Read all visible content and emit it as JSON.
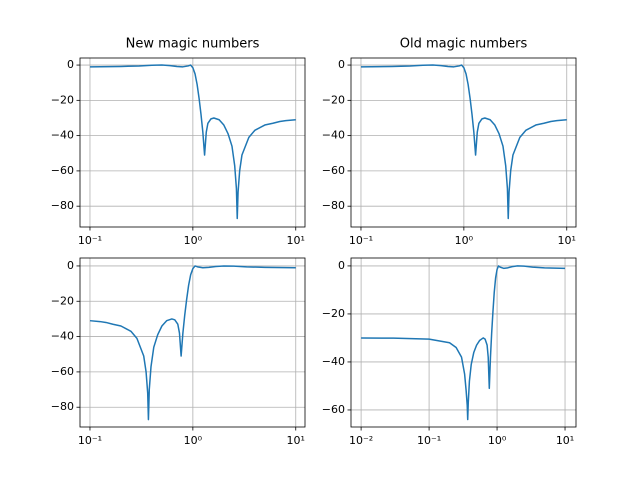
{
  "chart_data": [
    {
      "type": "line",
      "title": "New magic numbers",
      "xscale": "log",
      "grid": true,
      "color": "#1f77b4",
      "x": [
        0.1,
        0.2,
        0.3,
        0.4,
        0.5,
        0.6,
        0.7,
        0.8,
        0.9,
        0.95,
        1.0,
        1.05,
        1.1,
        1.15,
        1.2,
        1.25,
        1.3,
        1.35,
        1.4,
        1.5,
        1.6,
        1.8,
        2.0,
        2.2,
        2.4,
        2.55,
        2.65,
        2.7,
        2.75,
        2.85,
        3.0,
        3.5,
        4.0,
        5.0,
        6.0,
        7.0,
        8.0,
        10
      ],
      "values": [
        -1,
        -0.8,
        -0.5,
        -0.1,
        0,
        -0.3,
        -0.8,
        -1,
        -0.5,
        0,
        -1.5,
        -5,
        -11,
        -19,
        -28,
        -38,
        -51,
        -38,
        -33,
        -30.5,
        -30,
        -31,
        -34,
        -39,
        -46,
        -57,
        -70,
        -87,
        -72,
        -60,
        -51,
        -41,
        -37,
        -34,
        -33,
        -32,
        -31.5,
        -31
      ],
      "xlim": [
        0.08,
        12.3
      ],
      "ylim": [
        -91.8,
        4
      ],
      "xticks": [
        {
          "value": 0.1,
          "label": "10⁻¹"
        },
        {
          "value": 1,
          "label": "10⁰"
        },
        {
          "value": 10,
          "label": "10¹"
        }
      ],
      "yticks": [
        {
          "value": -80,
          "label": "−80"
        },
        {
          "value": -60,
          "label": "−60"
        },
        {
          "value": -40,
          "label": "−40"
        },
        {
          "value": -20,
          "label": "−20"
        },
        0
      ]
    },
    {
      "type": "line",
      "title": "Old magic numbers",
      "xscale": "log",
      "grid": true,
      "color": "#1f77b4",
      "x": [
        0.1,
        0.2,
        0.3,
        0.4,
        0.5,
        0.6,
        0.7,
        0.8,
        0.9,
        0.95,
        1.0,
        1.05,
        1.1,
        1.15,
        1.2,
        1.25,
        1.3,
        1.35,
        1.4,
        1.5,
        1.6,
        1.8,
        2.0,
        2.2,
        2.4,
        2.55,
        2.65,
        2.7,
        2.75,
        2.85,
        3.0,
        3.5,
        4.0,
        5.0,
        6.0,
        7.0,
        8.0,
        10
      ],
      "values": [
        -1,
        -0.8,
        -0.5,
        -0.1,
        0,
        -0.3,
        -0.8,
        -1,
        -0.5,
        0,
        -1.5,
        -5,
        -11,
        -19,
        -28,
        -38,
        -51,
        -38,
        -33,
        -30.5,
        -30,
        -31,
        -34,
        -39,
        -46,
        -57,
        -70,
        -87,
        -72,
        -60,
        -51,
        -41,
        -37,
        -34,
        -33,
        -32,
        -31.5,
        -31
      ],
      "xlim": [
        0.08,
        12.3
      ],
      "ylim": [
        -91.8,
        4
      ],
      "xticks": [
        {
          "value": 0.1,
          "label": "10⁻¹"
        },
        {
          "value": 1,
          "label": "10⁰"
        },
        {
          "value": 10,
          "label": "10¹"
        }
      ],
      "yticks": [
        {
          "value": -80,
          "label": "−80"
        },
        {
          "value": -60,
          "label": "−60"
        },
        {
          "value": -40,
          "label": "−40"
        },
        {
          "value": -20,
          "label": "−20"
        },
        0
      ]
    },
    {
      "type": "line",
      "xscale": "log",
      "grid": true,
      "color": "#1f77b4",
      "x": [
        0.1,
        0.125,
        0.143,
        0.167,
        0.2,
        0.25,
        0.286,
        0.333,
        0.351,
        0.364,
        0.37,
        0.377,
        0.392,
        0.417,
        0.455,
        0.5,
        0.556,
        0.625,
        0.667,
        0.714,
        0.741,
        0.769,
        0.8,
        0.833,
        0.87,
        0.909,
        0.952,
        1.0,
        1.05,
        1.11,
        1.25,
        1.43,
        1.67,
        2.0,
        2.5,
        3.33,
        5,
        10
      ],
      "values": [
        -31,
        -31.5,
        -32,
        -33,
        -34,
        -37,
        -41,
        -51,
        -60,
        -72,
        -87,
        -70,
        -57,
        -46,
        -39,
        -34,
        -31,
        -30,
        -30.5,
        -33,
        -38,
        -51,
        -38,
        -28,
        -19,
        -11,
        -5,
        -1.5,
        0,
        -0.5,
        -1,
        -0.8,
        -0.3,
        0,
        -0.1,
        -0.5,
        -0.8,
        -1
      ],
      "xlim": [
        0.08,
        12.3
      ],
      "ylim": [
        -91.2,
        4.5
      ],
      "xticks": [
        {
          "value": 0.1,
          "label": "10⁻¹"
        },
        {
          "value": 1,
          "label": "10⁰"
        },
        {
          "value": 10,
          "label": "10¹"
        }
      ],
      "yticks": [
        {
          "value": -80,
          "label": "−80"
        },
        {
          "value": -60,
          "label": "−60"
        },
        {
          "value": -40,
          "label": "−40"
        },
        {
          "value": -20,
          "label": "−20"
        },
        0
      ]
    },
    {
      "type": "line",
      "xscale": "log",
      "grid": true,
      "color": "#1f77b4",
      "x": [
        0.01,
        0.03,
        0.1,
        0.2,
        0.25,
        0.3,
        0.333,
        0.351,
        0.364,
        0.37,
        0.377,
        0.392,
        0.417,
        0.455,
        0.5,
        0.556,
        0.625,
        0.667,
        0.714,
        0.741,
        0.769,
        0.8,
        0.833,
        0.87,
        0.909,
        0.952,
        1.0,
        1.05,
        1.11,
        1.25,
        1.43,
        1.67,
        2.0,
        2.5,
        3.33,
        5,
        10
      ],
      "values": [
        -30,
        -30.1,
        -30.5,
        -32,
        -34,
        -38,
        -45,
        -52,
        -58,
        -64,
        -57,
        -48,
        -41,
        -36,
        -33,
        -31,
        -30,
        -30.5,
        -33,
        -38,
        -51,
        -38,
        -28,
        -19,
        -11,
        -5,
        -1.5,
        0,
        -0.5,
        -1,
        -0.8,
        -0.3,
        0,
        -0.1,
        -0.5,
        -0.8,
        -1
      ],
      "xlim": [
        0.0071,
        14.5
      ],
      "ylim": [
        -67.1,
        3.3
      ],
      "xticks": [
        {
          "value": 0.01,
          "label": "10⁻²"
        },
        {
          "value": 0.1,
          "label": "10⁻¹"
        },
        {
          "value": 1,
          "label": "10⁰"
        },
        {
          "value": 10,
          "label": "10¹"
        }
      ],
      "yticks": [
        {
          "value": -60,
          "label": "−60"
        },
        {
          "value": -40,
          "label": "−40"
        },
        {
          "value": -20,
          "label": "−20"
        },
        0
      ]
    }
  ]
}
